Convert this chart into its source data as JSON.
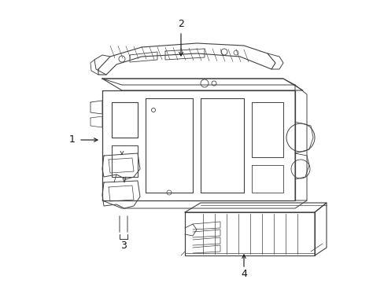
{
  "background_color": "#ffffff",
  "line_color": "#404040",
  "line_width": 0.7,
  "label_color": "#111111",
  "labels": [
    "1",
    "2",
    "3",
    "4"
  ],
  "figsize": [
    4.89,
    3.6
  ],
  "dpi": 100
}
